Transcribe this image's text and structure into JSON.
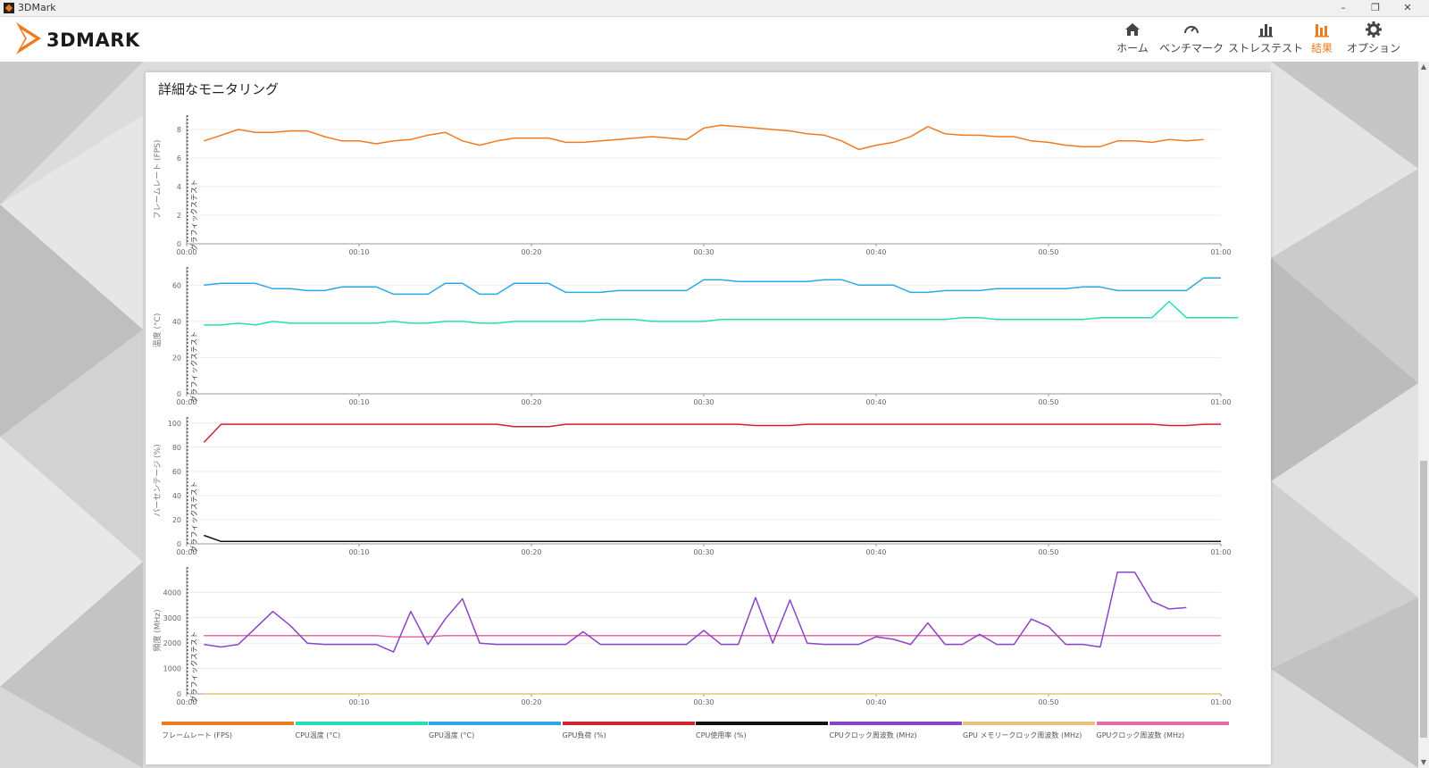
{
  "window": {
    "title": "3DMark"
  },
  "brand": {
    "logo_text": "3DMARK",
    "accent": "#f07b1f"
  },
  "nav": {
    "items": [
      {
        "label": "ホーム",
        "icon": "home-icon",
        "active": false
      },
      {
        "label": "ベンチマーク",
        "icon": "gauge-icon",
        "active": false
      },
      {
        "label": "ストレステスト",
        "icon": "bar-chart-icon",
        "active": false
      },
      {
        "label": "結果",
        "icon": "results-icon",
        "active": true
      },
      {
        "label": "オプション",
        "icon": "gear-icon",
        "active": false
      }
    ]
  },
  "panel": {
    "title": "詳細なモニタリング"
  },
  "chart_data": [
    {
      "type": "line",
      "ylabel": "フレームレート (FPS)",
      "ylim": [
        0,
        9
      ],
      "yticks": [
        0,
        2,
        4,
        6,
        8
      ],
      "xticks": [
        "00:00",
        "00:10",
        "00:20",
        "00:30",
        "00:40",
        "00:50",
        "01:00"
      ],
      "marker_label": "グラフィックステスト",
      "series": [
        {
          "name": "フレームレート (FPS)",
          "color": "#f07b1f",
          "x_start": 1,
          "x_step": 1,
          "values": [
            7.2,
            7.6,
            8.0,
            7.8,
            7.8,
            7.9,
            7.9,
            7.5,
            7.2,
            7.2,
            7.0,
            7.2,
            7.3,
            7.6,
            7.8,
            7.2,
            6.9,
            7.2,
            7.4,
            7.4,
            7.4,
            7.1,
            7.1,
            7.2,
            7.3,
            7.4,
            7.5,
            7.4,
            7.3,
            8.1,
            8.3,
            8.2,
            8.1,
            8.0,
            7.9,
            7.7,
            7.6,
            7.2,
            6.6,
            6.9,
            7.1,
            7.5,
            8.2,
            7.7,
            7.6,
            7.6,
            7.5,
            7.5,
            7.2,
            7.1,
            6.9,
            6.8,
            6.8,
            7.2,
            7.2,
            7.1,
            7.3,
            7.2,
            7.3
          ]
        }
      ]
    },
    {
      "type": "line",
      "ylabel": "温度 (°C)",
      "ylim": [
        0,
        70
      ],
      "yticks": [
        0,
        20,
        40,
        60
      ],
      "xticks": [
        "00:00",
        "00:10",
        "00:20",
        "00:30",
        "00:40",
        "00:50",
        "01:00"
      ],
      "marker_label": "グラフィックステスト",
      "series": [
        {
          "name": "GPU温度 (°C)",
          "color": "#2aa8e8",
          "x_start": 1,
          "x_step": 1,
          "values": [
            60,
            61,
            61,
            61,
            58,
            58,
            57,
            57,
            59,
            59,
            59,
            55,
            55,
            55,
            61,
            61,
            55,
            55,
            61,
            61,
            61,
            56,
            56,
            56,
            57,
            57,
            57,
            57,
            57,
            63,
            63,
            62,
            62,
            62,
            62,
            62,
            63,
            63,
            60,
            60,
            60,
            56,
            56,
            57,
            57,
            57,
            58,
            58,
            58,
            58,
            58,
            59,
            59,
            57,
            57,
            57,
            57,
            57,
            64,
            64
          ]
        },
        {
          "name": "CPU温度 (°C)",
          "color": "#22e0b6",
          "x_start": 1,
          "x_step": 1,
          "values": [
            38,
            38,
            39,
            38,
            40,
            39,
            39,
            39,
            39,
            39,
            39,
            40,
            39,
            39,
            40,
            40,
            39,
            39,
            40,
            40,
            40,
            40,
            40,
            41,
            41,
            41,
            40,
            40,
            40,
            40,
            41,
            41,
            41,
            41,
            41,
            41,
            41,
            41,
            41,
            41,
            41,
            41,
            41,
            41,
            42,
            42,
            41,
            41,
            41,
            41,
            41,
            41,
            42,
            42,
            42,
            42,
            51,
            42,
            42,
            42,
            42
          ]
        }
      ]
    },
    {
      "type": "line",
      "ylabel": "パーセンテージ (%)",
      "ylim": [
        0,
        105
      ],
      "yticks": [
        0,
        20,
        40,
        60,
        80,
        100
      ],
      "xticks": [
        "00:00",
        "00:10",
        "00:20",
        "00:30",
        "00:40",
        "00:50",
        "01:00"
      ],
      "marker_label": "グラフィックステスト",
      "series": [
        {
          "name": "GPU負荷 (%)",
          "color": "#d0232e",
          "x_start": 1,
          "x_step": 1,
          "values": [
            84,
            99,
            99,
            99,
            99,
            99,
            99,
            99,
            99,
            99,
            99,
            99,
            99,
            99,
            99,
            99,
            99,
            99,
            97,
            97,
            97,
            99,
            99,
            99,
            99,
            99,
            99,
            99,
            99,
            99,
            99,
            99,
            98,
            98,
            98,
            99,
            99,
            99,
            99,
            99,
            99,
            99,
            99,
            99,
            99,
            99,
            99,
            99,
            99,
            99,
            99,
            99,
            99,
            99,
            99,
            99,
            98,
            98,
            99,
            99
          ]
        },
        {
          "name": "CPU使用率 (%)",
          "color": "#111111",
          "x_start": 1,
          "x_step": 1,
          "values": [
            7,
            2,
            2,
            2,
            2,
            2,
            2,
            2,
            2,
            2,
            2,
            2,
            2,
            2,
            2,
            2,
            2,
            2,
            2,
            2,
            2,
            2,
            2,
            2,
            2,
            2,
            2,
            2,
            2,
            2,
            2,
            2,
            2,
            2,
            2,
            2,
            2,
            2,
            2,
            2,
            2,
            2,
            2,
            2,
            2,
            2,
            2,
            2,
            2,
            2,
            2,
            2,
            2,
            2,
            2,
            2,
            2,
            2,
            2,
            2
          ]
        }
      ]
    },
    {
      "type": "line",
      "ylabel": "頻度 (MHz)",
      "ylim": [
        0,
        5000
      ],
      "yticks": [
        0,
        1000,
        2000,
        3000,
        4000
      ],
      "xticks": [
        "00:00",
        "00:10",
        "00:20",
        "00:30",
        "00:40",
        "00:50",
        "01:00"
      ],
      "marker_label": "グラフィックステスト",
      "series": [
        {
          "name": "GPUクロック周波数 (MHz)",
          "color": "#e76aa8",
          "x_start": 1,
          "x_step": 1,
          "values": [
            2300,
            2300,
            2300,
            2300,
            2300,
            2300,
            2300,
            2300,
            2300,
            2300,
            2300,
            2250,
            2250,
            2250,
            2300,
            2300,
            2300,
            2300,
            2300,
            2300,
            2300,
            2300,
            2300,
            2300,
            2300,
            2300,
            2300,
            2300,
            2300,
            2300,
            2300,
            2300,
            2300,
            2300,
            2300,
            2300,
            2300,
            2300,
            2300,
            2300,
            2300,
            2300,
            2300,
            2300,
            2300,
            2300,
            2300,
            2300,
            2300,
            2300,
            2300,
            2300,
            2300,
            2300,
            2300,
            2300,
            2300,
            2300,
            2300,
            2300
          ]
        },
        {
          "name": "GPUメモリークロック周波数 (MHz)",
          "color": "#e8c27a",
          "x_start": 1,
          "x_step": 1,
          "values": [
            0,
            0,
            0,
            0,
            0,
            0,
            0,
            0,
            0,
            0,
            0,
            0,
            0,
            0,
            0,
            0,
            0,
            0,
            0,
            0,
            0,
            0,
            0,
            0,
            0,
            0,
            0,
            0,
            0,
            0,
            0,
            0,
            0,
            0,
            0,
            0,
            0,
            0,
            0,
            0,
            0,
            0,
            0,
            0,
            0,
            0,
            0,
            0,
            0,
            0,
            0,
            0,
            0,
            0,
            0,
            0,
            0,
            0,
            0,
            0
          ]
        },
        {
          "name": "CPUクロック周波数 (MHz)",
          "color": "#8b44c8",
          "x_start": 1,
          "x_step": 1,
          "values": [
            1950,
            1850,
            1950,
            2600,
            3250,
            2700,
            2000,
            1950,
            1950,
            1950,
            1950,
            1650,
            3250,
            1950,
            2950,
            3750,
            2000,
            1950,
            1950,
            1950,
            1950,
            1950,
            2450,
            1950,
            1950,
            1950,
            1950,
            1950,
            1950,
            2500,
            1950,
            1950,
            3800,
            2000,
            3700,
            2000,
            1950,
            1950,
            1950,
            2250,
            2150,
            1950,
            2800,
            1950,
            1950,
            2350,
            1950,
            1950,
            2950,
            2650,
            1950,
            1950,
            1850,
            4800,
            4800,
            3650,
            3350,
            3400
          ]
        }
      ]
    }
  ],
  "legend": [
    {
      "label": "フレームレート (FPS)",
      "color": "#f07b1f"
    },
    {
      "label": "CPU温度 (°C)",
      "color": "#22e0b6"
    },
    {
      "label": "GPU温度 (°C)",
      "color": "#2aa8e8"
    },
    {
      "label": "GPU負荷 (%)",
      "color": "#d0232e"
    },
    {
      "label": "CPU使用率 (%)",
      "color": "#111111"
    },
    {
      "label": "CPUクロック周波数 (MHz)",
      "color": "#8b44c8"
    },
    {
      "label": "GPU メモリークロック周波数 (MHz)",
      "color": "#e8c27a"
    },
    {
      "label": "GPUクロック周波数 (MHz)",
      "color": "#e76aa8"
    }
  ]
}
